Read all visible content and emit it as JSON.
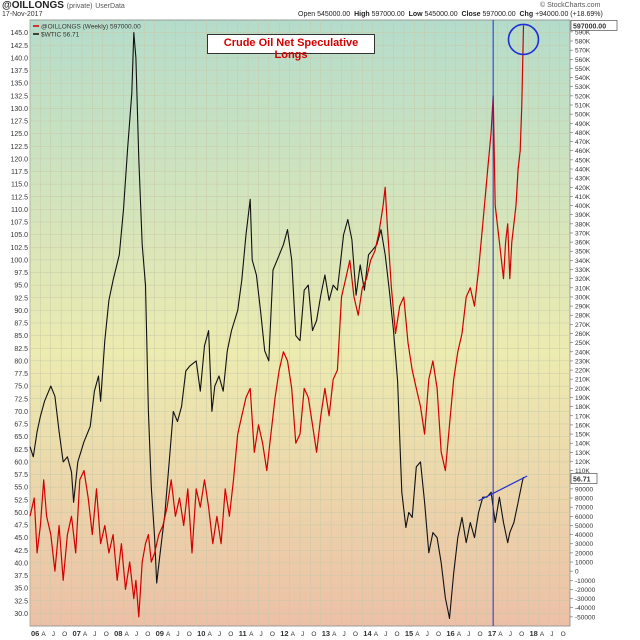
{
  "header": {
    "symbol": "@OILLONGS",
    "symbol_note": "(private)",
    "symbol_source": "UserData",
    "date": "17-Nov-2017",
    "open_label": "Open",
    "open_value": "545000.00",
    "high_label": "High",
    "high_value": "597000.00",
    "low_label": "Low",
    "low_value": "545000.00",
    "close_label": "Close",
    "close_value": "597000.00",
    "chg_label": "Chg",
    "chg_value": "+94000.00 (+18.69%)",
    "credit": "© StockCharts.com"
  },
  "chart_data": {
    "type": "line",
    "title": "Crude Oil Net Speculative Longs",
    "legend": [
      {
        "label": "@OILLONGS (Weekly) 597000.00",
        "color": "#d40000"
      },
      {
        "label": "$WTIC 56.71",
        "color": "#111111"
      }
    ],
    "colors": {
      "oillongs": "#d40000",
      "wtic": "#111111",
      "annotation": "#1f2fd6"
    },
    "x_ticks": [
      "06",
      "A",
      "J",
      "O",
      "07",
      "A",
      "J",
      "O",
      "08",
      "A",
      "J",
      "O",
      "09",
      "A",
      "J",
      "O",
      "10",
      "A",
      "J",
      "O",
      "11",
      "A",
      "J",
      "O",
      "12",
      "A",
      "J",
      "O",
      "13",
      "A",
      "J",
      "O",
      "14",
      "A",
      "J",
      "O",
      "15",
      "A",
      "J",
      "O",
      "16",
      "A",
      "J",
      "O",
      "17",
      "A",
      "J",
      "O",
      "18",
      "A",
      "J",
      "O"
    ],
    "x_range": [
      2006.0,
      2019.0
    ],
    "left_axis": {
      "series": "$WTIC",
      "ylim": [
        27.5,
        147.5
      ],
      "ticks": [
        "30.0",
        "32.5",
        "35.0",
        "37.5",
        "40.0",
        "42.5",
        "45.0",
        "47.5",
        "50.0",
        "52.5",
        "55.0",
        "57.5",
        "60.0",
        "62.5",
        "65.0",
        "67.5",
        "70.0",
        "72.5",
        "75.0",
        "77.5",
        "80.0",
        "82.5",
        "85.0",
        "87.5",
        "90.0",
        "92.5",
        "95.0",
        "97.5",
        "100.0",
        "102.5",
        "105.0",
        "107.5",
        "110.0",
        "112.5",
        "115.0",
        "117.5",
        "120.0",
        "122.5",
        "125.0",
        "127.5",
        "130.0",
        "132.5",
        "135.0",
        "137.5",
        "140.0",
        "142.5",
        "145.0"
      ]
    },
    "right_axis": {
      "series": "@OILLONGS",
      "ylim": [
        -60000,
        603000
      ],
      "ticks": [
        "-50000",
        "-40000",
        "-30000",
        "-20000",
        "-10000",
        "0",
        "10000",
        "20000",
        "30000",
        "40000",
        "50000",
        "60000",
        "70000",
        "80000",
        "90000",
        "110K",
        "120K",
        "130K",
        "140K",
        "150K",
        "160K",
        "170K",
        "180K",
        "190K",
        "200K",
        "210K",
        "220K",
        "230K",
        "240K",
        "250K",
        "260K",
        "270K",
        "280K",
        "290K",
        "300K",
        "310K",
        "320K",
        "330K",
        "340K",
        "350K",
        "360K",
        "370K",
        "380K",
        "390K",
        "400K",
        "410K",
        "420K",
        "430K",
        "440K",
        "450K",
        "460K",
        "470K",
        "480K",
        "490K",
        "500K",
        "510K",
        "520K",
        "530K",
        "540K",
        "550K",
        "560K",
        "570K",
        "580K",
        "590K"
      ],
      "last_value_label": "597000.00"
    },
    "wtic_last_label": "56.71",
    "wtic_series": [
      [
        2006.0,
        63
      ],
      [
        2006.08,
        61
      ],
      [
        2006.17,
        66
      ],
      [
        2006.25,
        69
      ],
      [
        2006.35,
        72
      ],
      [
        2006.5,
        75
      ],
      [
        2006.6,
        73
      ],
      [
        2006.7,
        66
      ],
      [
        2006.8,
        60
      ],
      [
        2006.9,
        61
      ],
      [
        2007.0,
        58
      ],
      [
        2007.05,
        52
      ],
      [
        2007.15,
        60
      ],
      [
        2007.3,
        64
      ],
      [
        2007.45,
        67
      ],
      [
        2007.55,
        74
      ],
      [
        2007.65,
        77
      ],
      [
        2007.7,
        72
      ],
      [
        2007.8,
        84
      ],
      [
        2007.9,
        92
      ],
      [
        2008.0,
        96
      ],
      [
        2008.15,
        101
      ],
      [
        2008.25,
        110
      ],
      [
        2008.35,
        122
      ],
      [
        2008.45,
        133
      ],
      [
        2008.5,
        145
      ],
      [
        2008.55,
        140
      ],
      [
        2008.62,
        120
      ],
      [
        2008.7,
        103
      ],
      [
        2008.78,
        95
      ],
      [
        2008.85,
        70
      ],
      [
        2008.92,
        55
      ],
      [
        2009.0,
        45
      ],
      [
        2009.05,
        36
      ],
      [
        2009.12,
        41
      ],
      [
        2009.25,
        50
      ],
      [
        2009.35,
        60
      ],
      [
        2009.45,
        70
      ],
      [
        2009.55,
        68
      ],
      [
        2009.65,
        71
      ],
      [
        2009.75,
        78
      ],
      [
        2009.85,
        79
      ],
      [
        2010.0,
        80
      ],
      [
        2010.1,
        74
      ],
      [
        2010.2,
        83
      ],
      [
        2010.3,
        86
      ],
      [
        2010.38,
        70
      ],
      [
        2010.45,
        75
      ],
      [
        2010.55,
        77
      ],
      [
        2010.65,
        74
      ],
      [
        2010.75,
        82
      ],
      [
        2010.85,
        86
      ],
      [
        2011.0,
        90
      ],
      [
        2011.1,
        96
      ],
      [
        2011.2,
        105
      ],
      [
        2011.3,
        112
      ],
      [
        2011.35,
        100
      ],
      [
        2011.45,
        97
      ],
      [
        2011.55,
        90
      ],
      [
        2011.65,
        82
      ],
      [
        2011.75,
        80
      ],
      [
        2011.85,
        98
      ],
      [
        2011.95,
        100
      ],
      [
        2012.1,
        103
      ],
      [
        2012.2,
        106
      ],
      [
        2012.3,
        100
      ],
      [
        2012.4,
        85
      ],
      [
        2012.5,
        84
      ],
      [
        2012.6,
        94
      ],
      [
        2012.7,
        95
      ],
      [
        2012.8,
        86
      ],
      [
        2012.9,
        88
      ],
      [
        2013.0,
        93
      ],
      [
        2013.1,
        97
      ],
      [
        2013.2,
        92
      ],
      [
        2013.3,
        95
      ],
      [
        2013.4,
        94
      ],
      [
        2013.55,
        105
      ],
      [
        2013.65,
        108
      ],
      [
        2013.75,
        104
      ],
      [
        2013.85,
        93
      ],
      [
        2013.95,
        99
      ],
      [
        2014.05,
        94
      ],
      [
        2014.15,
        101
      ],
      [
        2014.25,
        102
      ],
      [
        2014.35,
        103
      ],
      [
        2014.45,
        106
      ],
      [
        2014.55,
        101
      ],
      [
        2014.65,
        94
      ],
      [
        2014.75,
        86
      ],
      [
        2014.85,
        76
      ],
      [
        2014.95,
        54
      ],
      [
        2015.05,
        47
      ],
      [
        2015.12,
        50
      ],
      [
        2015.2,
        49
      ],
      [
        2015.3,
        59
      ],
      [
        2015.4,
        60
      ],
      [
        2015.5,
        52
      ],
      [
        2015.6,
        42
      ],
      [
        2015.7,
        46
      ],
      [
        2015.8,
        45
      ],
      [
        2015.9,
        40
      ],
      [
        2016.0,
        33
      ],
      [
        2016.05,
        31
      ],
      [
        2016.1,
        29
      ],
      [
        2016.2,
        38
      ],
      [
        2016.3,
        45
      ],
      [
        2016.4,
        49
      ],
      [
        2016.5,
        44
      ],
      [
        2016.6,
        48
      ],
      [
        2016.7,
        45
      ],
      [
        2016.8,
        50
      ],
      [
        2016.9,
        53
      ],
      [
        2017.0,
        53
      ],
      [
        2017.1,
        54
      ],
      [
        2017.2,
        48
      ],
      [
        2017.3,
        53
      ],
      [
        2017.4,
        48
      ],
      [
        2017.5,
        44
      ],
      [
        2017.55,
        46
      ],
      [
        2017.65,
        48
      ],
      [
        2017.75,
        52
      ],
      [
        2017.85,
        56
      ],
      [
        2017.88,
        57
      ]
    ],
    "oillongs_series": [
      [
        2006.0,
        60000
      ],
      [
        2006.1,
        80000
      ],
      [
        2006.17,
        20000
      ],
      [
        2006.25,
        50000
      ],
      [
        2006.33,
        100000
      ],
      [
        2006.4,
        60000
      ],
      [
        2006.5,
        40000
      ],
      [
        2006.6,
        0
      ],
      [
        2006.7,
        50000
      ],
      [
        2006.8,
        -10000
      ],
      [
        2006.9,
        40000
      ],
      [
        2007.0,
        60000
      ],
      [
        2007.1,
        20000
      ],
      [
        2007.2,
        100000
      ],
      [
        2007.3,
        110000
      ],
      [
        2007.4,
        80000
      ],
      [
        2007.5,
        40000
      ],
      [
        2007.6,
        90000
      ],
      [
        2007.7,
        30000
      ],
      [
        2007.8,
        50000
      ],
      [
        2007.9,
        20000
      ],
      [
        2008.0,
        40000
      ],
      [
        2008.1,
        -10000
      ],
      [
        2008.2,
        30000
      ],
      [
        2008.3,
        -20000
      ],
      [
        2008.4,
        10000
      ],
      [
        2008.5,
        -30000
      ],
      [
        2008.55,
        -10000
      ],
      [
        2008.62,
        -50000
      ],
      [
        2008.7,
        10000
      ],
      [
        2008.78,
        30000
      ],
      [
        2008.85,
        40000
      ],
      [
        2008.92,
        10000
      ],
      [
        2009.0,
        20000
      ],
      [
        2009.1,
        40000
      ],
      [
        2009.2,
        50000
      ],
      [
        2009.3,
        70000
      ],
      [
        2009.4,
        100000
      ],
      [
        2009.5,
        60000
      ],
      [
        2009.6,
        80000
      ],
      [
        2009.7,
        50000
      ],
      [
        2009.8,
        90000
      ],
      [
        2009.9,
        20000
      ],
      [
        2010.0,
        90000
      ],
      [
        2010.1,
        70000
      ],
      [
        2010.2,
        100000
      ],
      [
        2010.3,
        70000
      ],
      [
        2010.4,
        30000
      ],
      [
        2010.5,
        60000
      ],
      [
        2010.6,
        30000
      ],
      [
        2010.7,
        90000
      ],
      [
        2010.8,
        60000
      ],
      [
        2010.9,
        100000
      ],
      [
        2011.0,
        150000
      ],
      [
        2011.1,
        170000
      ],
      [
        2011.2,
        190000
      ],
      [
        2011.3,
        200000
      ],
      [
        2011.4,
        130000
      ],
      [
        2011.5,
        160000
      ],
      [
        2011.6,
        140000
      ],
      [
        2011.7,
        110000
      ],
      [
        2011.8,
        150000
      ],
      [
        2011.9,
        190000
      ],
      [
        2012.0,
        220000
      ],
      [
        2012.1,
        240000
      ],
      [
        2012.2,
        230000
      ],
      [
        2012.3,
        200000
      ],
      [
        2012.4,
        140000
      ],
      [
        2012.5,
        150000
      ],
      [
        2012.6,
        200000
      ],
      [
        2012.7,
        190000
      ],
      [
        2012.8,
        160000
      ],
      [
        2012.9,
        130000
      ],
      [
        2013.0,
        170000
      ],
      [
        2013.1,
        200000
      ],
      [
        2013.2,
        170000
      ],
      [
        2013.3,
        210000
      ],
      [
        2013.4,
        220000
      ],
      [
        2013.5,
        300000
      ],
      [
        2013.6,
        320000
      ],
      [
        2013.7,
        340000
      ],
      [
        2013.8,
        300000
      ],
      [
        2013.9,
        280000
      ],
      [
        2014.0,
        310000
      ],
      [
        2014.1,
        320000
      ],
      [
        2014.2,
        340000
      ],
      [
        2014.3,
        350000
      ],
      [
        2014.4,
        370000
      ],
      [
        2014.5,
        400000
      ],
      [
        2014.55,
        420000
      ],
      [
        2014.6,
        380000
      ],
      [
        2014.7,
        310000
      ],
      [
        2014.8,
        260000
      ],
      [
        2014.9,
        290000
      ],
      [
        2015.0,
        300000
      ],
      [
        2015.1,
        250000
      ],
      [
        2015.2,
        220000
      ],
      [
        2015.3,
        200000
      ],
      [
        2015.4,
        180000
      ],
      [
        2015.5,
        150000
      ],
      [
        2015.6,
        210000
      ],
      [
        2015.7,
        230000
      ],
      [
        2015.8,
        200000
      ],
      [
        2015.9,
        130000
      ],
      [
        2016.0,
        110000
      ],
      [
        2016.1,
        160000
      ],
      [
        2016.2,
        210000
      ],
      [
        2016.3,
        240000
      ],
      [
        2016.4,
        260000
      ],
      [
        2016.5,
        300000
      ],
      [
        2016.6,
        310000
      ],
      [
        2016.7,
        290000
      ],
      [
        2016.8,
        330000
      ],
      [
        2016.9,
        380000
      ],
      [
        2017.0,
        430000
      ],
      [
        2017.1,
        480000
      ],
      [
        2017.15,
        520000
      ],
      [
        2017.2,
        400000
      ],
      [
        2017.3,
        360000
      ],
      [
        2017.4,
        320000
      ],
      [
        2017.45,
        360000
      ],
      [
        2017.5,
        380000
      ],
      [
        2017.55,
        320000
      ],
      [
        2017.6,
        360000
      ],
      [
        2017.7,
        400000
      ],
      [
        2017.75,
        440000
      ],
      [
        2017.8,
        460000
      ],
      [
        2017.84,
        510000
      ],
      [
        2017.88,
        597000
      ]
    ]
  }
}
